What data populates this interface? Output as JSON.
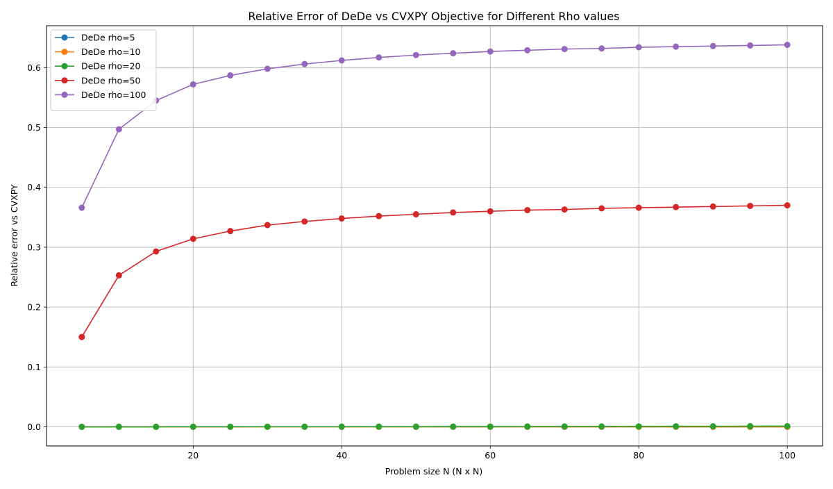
{
  "chart_data": {
    "type": "line",
    "title": "Relative Error of DeDe vs CVXPY Objective for Different Rho values",
    "xlabel": "Problem size N (N x N)",
    "ylabel": "Relative error vs CVXPY",
    "xlim": [
      0.25,
      104.75
    ],
    "ylim": [
      -0.0319,
      0.67
    ],
    "xticks": [
      20,
      40,
      60,
      80,
      100
    ],
    "xtick_labels": [
      "20",
      "40",
      "60",
      "80",
      "100"
    ],
    "yticks": [
      0.0,
      0.1,
      0.2,
      0.3,
      0.4,
      0.5,
      0.6
    ],
    "ytick_labels": [
      "0.0",
      "0.1",
      "0.2",
      "0.3",
      "0.4",
      "0.5",
      "0.6"
    ],
    "grid": true,
    "legend_position": "top-left",
    "x": [
      5,
      10,
      15,
      20,
      25,
      30,
      35,
      40,
      45,
      50,
      55,
      60,
      65,
      70,
      75,
      80,
      85,
      90,
      95,
      100
    ],
    "series": [
      {
        "name": "DeDe rho=5",
        "color": "#1f77b4",
        "values": [
          0.0,
          0.0,
          0.0,
          0.0,
          0.0,
          0.0,
          0.0,
          0.0,
          0.0,
          0.0,
          0.0,
          0.0,
          0.0,
          0.0,
          0.0,
          0.0,
          0.0,
          0.0,
          0.0,
          0.0
        ]
      },
      {
        "name": "DeDe rho=10",
        "color": "#ff7f0e",
        "values": [
          0.0,
          0.0,
          0.0,
          0.0,
          0.0,
          0.0,
          0.0,
          0.0,
          0.0,
          0.0,
          0.0,
          0.0,
          0.0,
          0.0,
          0.0,
          0.0,
          0.0,
          0.0,
          0.0,
          0.0
        ]
      },
      {
        "name": "DeDe rho=20",
        "color": "#2ca02c",
        "values": [
          0.0,
          0.0001,
          0.0001,
          0.0002,
          0.0002,
          0.0003,
          0.0003,
          0.0003,
          0.0004,
          0.0004,
          0.0005,
          0.0005,
          0.0006,
          0.0007,
          0.0007,
          0.0008,
          0.0009,
          0.001,
          0.0011,
          0.0012
        ]
      },
      {
        "name": "DeDe rho=50",
        "color": "#d62728",
        "values": [
          0.15,
          0.253,
          0.293,
          0.314,
          0.327,
          0.337,
          0.343,
          0.348,
          0.352,
          0.355,
          0.358,
          0.36,
          0.362,
          0.363,
          0.365,
          0.366,
          0.367,
          0.368,
          0.369,
          0.37
        ]
      },
      {
        "name": "DeDe rho=100",
        "color": "#9467bd",
        "values": [
          0.366,
          0.497,
          0.545,
          0.572,
          0.587,
          0.598,
          0.606,
          0.612,
          0.617,
          0.621,
          0.624,
          0.627,
          0.629,
          0.631,
          0.632,
          0.634,
          0.635,
          0.636,
          0.637,
          0.638
        ]
      }
    ]
  }
}
